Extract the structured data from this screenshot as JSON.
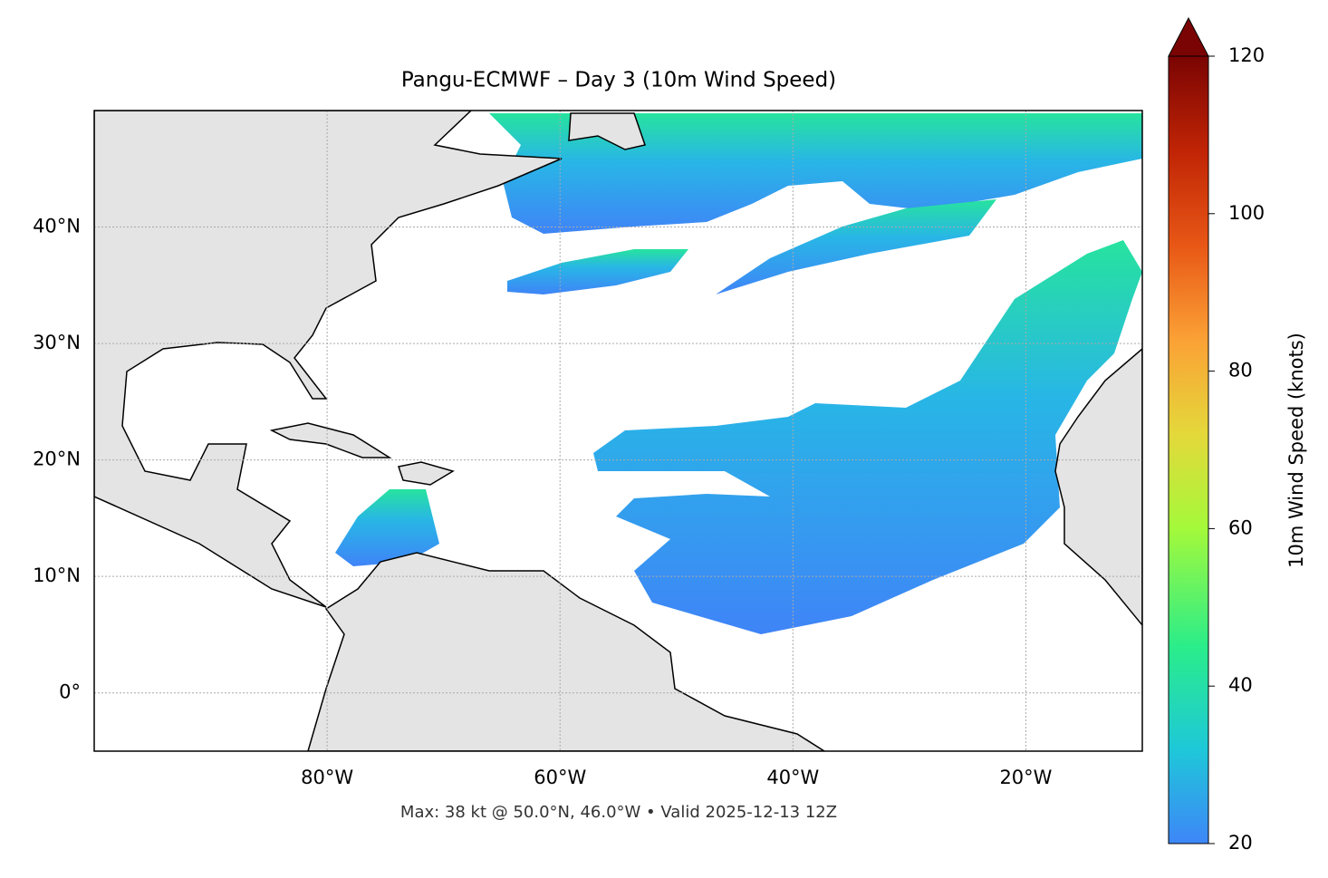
{
  "chart_data": {
    "type": "map",
    "title": "Pangu-ECMWF – Day 3 (10m Wind Speed)",
    "footnote": "Max: 38 kt @ 50.0°N, 46.0°W • Valid 2025-12-13 12Z",
    "xlim": [
      -100,
      -10
    ],
    "ylim": [
      -5,
      50
    ],
    "xticks": [
      {
        "value": -80,
        "label": "80°W"
      },
      {
        "value": -60,
        "label": "60°W"
      },
      {
        "value": -40,
        "label": "40°W"
      },
      {
        "value": -20,
        "label": "20°W"
      }
    ],
    "yticks": [
      {
        "value": 0,
        "label": "0°"
      },
      {
        "value": 10,
        "label": "10°N"
      },
      {
        "value": 20,
        "label": "20°N"
      },
      {
        "value": 30,
        "label": "30°N"
      },
      {
        "value": 40,
        "label": "40°N"
      }
    ],
    "grid": true,
    "colorbar": {
      "label": "10m Wind Speed (knots)",
      "lim": [
        20,
        120
      ],
      "ticks": [
        20,
        40,
        60,
        80,
        100,
        120
      ],
      "extend": "max"
    }
  }
}
